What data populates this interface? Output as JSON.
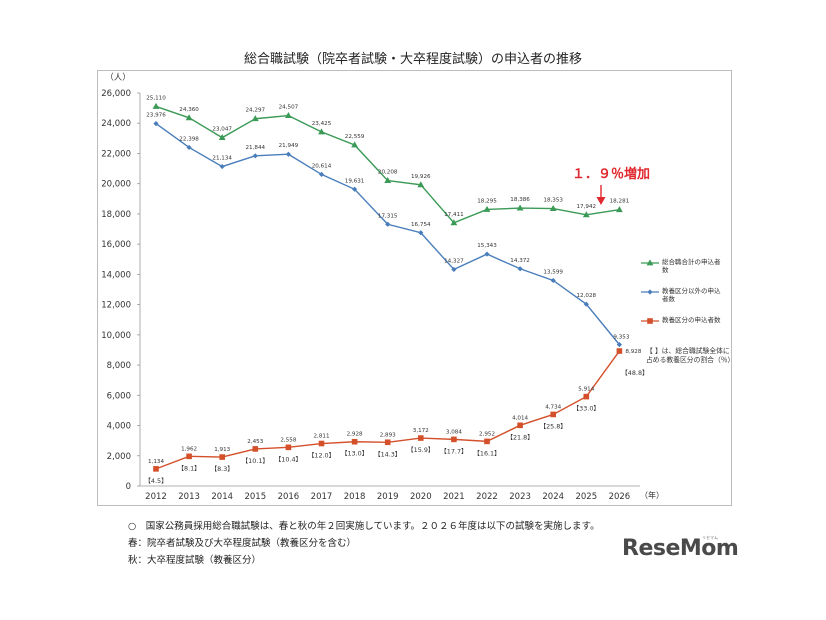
{
  "chart_data": {
    "type": "line",
    "title": "総合職試験（院卒者試験・大卒程度試験）の申込者の推移",
    "ylabel": "（人）",
    "xlabel": "（年）",
    "ylim": [
      0,
      26000
    ],
    "yticks": [
      "0",
      "2,000",
      "4,000",
      "6,000",
      "8,000",
      "10,000",
      "12,000",
      "14,000",
      "16,000",
      "18,000",
      "20,000",
      "22,000",
      "24,000",
      "26,000"
    ],
    "categories": [
      "2012",
      "2013",
      "2014",
      "2015",
      "2016",
      "2017",
      "2018",
      "2019",
      "2020",
      "2021",
      "2022",
      "2023",
      "2024",
      "2025",
      "2026"
    ],
    "series": [
      {
        "name": "総合職合計の申込者数",
        "color": "#3a9a56",
        "marker": "triangle",
        "values": [
          25110,
          24360,
          23047,
          24297,
          24507,
          23425,
          22559,
          20208,
          19926,
          17411,
          18295,
          18386,
          18353,
          17942,
          18281
        ],
        "labels": [
          "25,110",
          "24,360",
          "23,047",
          "24,297",
          "24,507",
          "23,425",
          "22,559",
          "20,208",
          "19,926",
          "17,411",
          "18,295",
          "18,386",
          "18,353",
          "17,942",
          "18,281"
        ]
      },
      {
        "name": "教養区分以外の申込者数",
        "color": "#4a7ebb",
        "marker": "diamond",
        "values": [
          23976,
          22398,
          21134,
          21844,
          21949,
          20614,
          19631,
          17315,
          16754,
          14327,
          15343,
          14372,
          13599,
          12028,
          9353
        ],
        "labels": [
          "23,976",
          "22,398",
          "21,134",
          "21,844",
          "21,949",
          "20,614",
          "19,631",
          "17,315",
          "16,754",
          "14,327",
          "15,343",
          "14,372",
          "13,599",
          "12,028",
          "9,353"
        ]
      },
      {
        "name": "教養区分の申込者数",
        "color": "#d4502a",
        "marker": "square",
        "values": [
          1134,
          1962,
          1913,
          2453,
          2558,
          2811,
          2928,
          2893,
          3172,
          3084,
          2952,
          4014,
          4734,
          5914,
          8928
        ],
        "labels": [
          "1,134",
          "1,962",
          "1,913",
          "2,453",
          "2,558",
          "2,811",
          "2,928",
          "2,893",
          "3,172",
          "3,084",
          "2,952",
          "4,014",
          "4,734",
          "5,914",
          "8,928"
        ],
        "ratios": [
          "【4.5】",
          "【8.1】",
          "【8.3】",
          "【10.1】",
          "【10.4】",
          "【12.0】",
          "【13.0】",
          "【14.3】",
          "【15.9】",
          "【17.7】",
          "【16.1】",
          "【21.8】",
          "【25.8】",
          "【33.0】",
          "【48.8】"
        ]
      }
    ],
    "highlight_text": "１．９％増加",
    "highlight_color": "#e0282e",
    "annotation_text": "【 】は、総合職試験全体に占める教養区分の割合（％）",
    "grid": false,
    "legend_position": "right"
  },
  "notes": {
    "line1": "○　国家公務員採用総合職試験は、春と秋の年２回実施しています。２０２６年度は以下の試験を実施します。",
    "line2": "春：院卒者試験及び大卒程度試験（教養区分を含む）",
    "line3": "秋：大卒程度試験（教養区分）"
  },
  "logo": {
    "text": "ReseMom",
    "subtext": "リセマム"
  }
}
